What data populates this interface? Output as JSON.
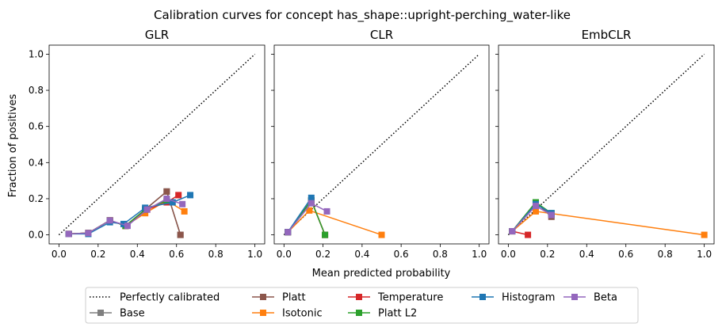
{
  "figure": {
    "title": "Calibration curves for concept has_shape::upright-perching_water-like",
    "xlabel": "Mean predicted probability",
    "ylabel": "Fraction of positives"
  },
  "legend": {
    "placement": "bottom-center",
    "entries": [
      {
        "key": "perfect",
        "label": "Perfectly calibrated"
      },
      {
        "key": "base",
        "label": "Base"
      },
      {
        "key": "platt",
        "label": "Platt"
      },
      {
        "key": "isotonic",
        "label": "Isotonic"
      },
      {
        "key": "temperature",
        "label": "Temperature"
      },
      {
        "key": "plattl2",
        "label": "Platt L2"
      },
      {
        "key": "histogram",
        "label": "Histogram"
      },
      {
        "key": "beta",
        "label": "Beta"
      }
    ]
  },
  "colors": {
    "perfect": "#000000",
    "base": "#7f7f7f",
    "platt": "#8c564b",
    "isotonic": "#ff7f0e",
    "temperature": "#d62728",
    "plattl2": "#2ca02c",
    "histogram": "#1f77b4",
    "beta": "#9467bd"
  },
  "axes_ticks": {
    "x": [
      "0.0",
      "0.2",
      "0.4",
      "0.6",
      "0.8",
      "1.0"
    ],
    "y": [
      "0.0",
      "0.2",
      "0.4",
      "0.6",
      "0.8",
      "1.0"
    ]
  },
  "chart_data": [
    {
      "type": "line",
      "title": "GLR",
      "xlim": [
        -0.05,
        1.05
      ],
      "ylim": [
        -0.05,
        1.05
      ],
      "grid": false,
      "series": [
        {
          "key": "base",
          "name": "Base",
          "x": [
            0.05,
            0.15,
            0.26,
            0.34,
            0.44,
            0.55,
            0.62
          ],
          "y": [
            0.005,
            0.01,
            0.08,
            0.05,
            0.14,
            0.24,
            0.0
          ]
        },
        {
          "key": "platt",
          "name": "Platt",
          "x": [
            0.05,
            0.15,
            0.26,
            0.34,
            0.44,
            0.55,
            0.62
          ],
          "y": [
            0.005,
            0.01,
            0.08,
            0.05,
            0.14,
            0.24,
            0.0
          ]
        },
        {
          "key": "isotonic",
          "name": "Isotonic",
          "x": [
            0.05,
            0.15,
            0.26,
            0.34,
            0.44,
            0.55,
            0.64
          ],
          "y": [
            0.005,
            0.01,
            0.08,
            0.05,
            0.12,
            0.19,
            0.13
          ]
        },
        {
          "key": "temperature",
          "name": "Temperature",
          "x": [
            0.05,
            0.15,
            0.26,
            0.34,
            0.45,
            0.55,
            0.61
          ],
          "y": [
            0.005,
            0.01,
            0.08,
            0.05,
            0.14,
            0.18,
            0.22
          ]
        },
        {
          "key": "plattl2",
          "name": "Platt L2",
          "x": [
            0.05,
            0.15,
            0.26,
            0.34,
            0.44,
            0.55
          ],
          "y": [
            0.005,
            0.01,
            0.08,
            0.05,
            0.14,
            0.19
          ]
        },
        {
          "key": "histogram",
          "name": "Histogram",
          "x": [
            0.05,
            0.15,
            0.26,
            0.33,
            0.44,
            0.58,
            0.67
          ],
          "y": [
            0.005,
            0.005,
            0.07,
            0.06,
            0.15,
            0.18,
            0.22
          ]
        },
        {
          "key": "beta",
          "name": "Beta",
          "x": [
            0.05,
            0.15,
            0.26,
            0.35,
            0.45,
            0.55,
            0.63
          ],
          "y": [
            0.005,
            0.01,
            0.08,
            0.05,
            0.14,
            0.2,
            0.17
          ]
        }
      ]
    },
    {
      "type": "line",
      "title": "CLR",
      "xlim": [
        -0.05,
        1.05
      ],
      "ylim": [
        -0.05,
        1.05
      ],
      "grid": false,
      "series": [
        {
          "key": "base",
          "name": "Base",
          "x": [
            0.02,
            0.14,
            0.21
          ],
          "y": [
            0.015,
            0.19,
            0.0
          ]
        },
        {
          "key": "platt",
          "name": "Platt",
          "x": [
            0.02,
            0.14,
            0.21
          ],
          "y": [
            0.015,
            0.19,
            0.0
          ]
        },
        {
          "key": "isotonic",
          "name": "Isotonic",
          "x": [
            0.02,
            0.13,
            0.5
          ],
          "y": [
            0.015,
            0.135,
            0.0
          ]
        },
        {
          "key": "temperature",
          "name": "Temperature",
          "x": [
            0.02,
            0.14,
            0.21
          ],
          "y": [
            0.015,
            0.19,
            0.0
          ]
        },
        {
          "key": "plattl2",
          "name": "Platt L2",
          "x": [
            0.02,
            0.14,
            0.21
          ],
          "y": [
            0.015,
            0.19,
            0.0
          ]
        },
        {
          "key": "histogram",
          "name": "Histogram",
          "x": [
            0.02,
            0.14
          ],
          "y": [
            0.015,
            0.205
          ]
        },
        {
          "key": "beta",
          "name": "Beta",
          "x": [
            0.02,
            0.14,
            0.22
          ],
          "y": [
            0.015,
            0.175,
            0.13
          ]
        }
      ]
    },
    {
      "type": "line",
      "title": "EmbCLR",
      "xlim": [
        -0.05,
        1.05
      ],
      "ylim": [
        -0.05,
        1.05
      ],
      "grid": false,
      "series": [
        {
          "key": "base",
          "name": "Base",
          "x": [
            0.02,
            0.14,
            0.22
          ],
          "y": [
            0.02,
            0.18,
            0.11
          ]
        },
        {
          "key": "platt",
          "name": "Platt",
          "x": [
            0.02,
            0.14,
            0.22
          ],
          "y": [
            0.02,
            0.18,
            0.1
          ]
        },
        {
          "key": "isotonic",
          "name": "Isotonic",
          "x": [
            0.02,
            0.14,
            1.0
          ],
          "y": [
            0.02,
            0.13,
            0.0
          ]
        },
        {
          "key": "temperature",
          "name": "Temperature",
          "x": [
            0.02,
            0.1
          ],
          "y": [
            0.02,
            0.0
          ]
        },
        {
          "key": "plattl2",
          "name": "Platt L2",
          "x": [
            0.02,
            0.14,
            0.22
          ],
          "y": [
            0.02,
            0.18,
            0.12
          ]
        },
        {
          "key": "histogram",
          "name": "Histogram",
          "x": [
            0.02,
            0.14,
            0.22
          ],
          "y": [
            0.02,
            0.17,
            0.12
          ]
        },
        {
          "key": "beta",
          "name": "Beta",
          "x": [
            0.02,
            0.14,
            0.22
          ],
          "y": [
            0.02,
            0.16,
            0.11
          ]
        }
      ]
    }
  ]
}
